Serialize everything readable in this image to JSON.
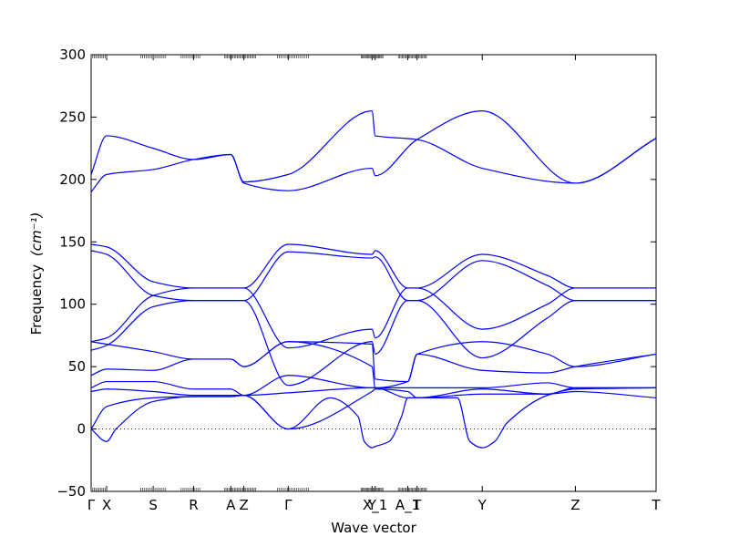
{
  "chart_data": {
    "type": "line",
    "title": "",
    "xlabel": "Wave vector",
    "ylabel": "Frequency",
    "ylabel_unit": "(cm⁻¹)",
    "ylim": [
      -50,
      300
    ],
    "yticks": [
      -50,
      0,
      50,
      100,
      150,
      200,
      250,
      300
    ],
    "grid": false,
    "legend": "none",
    "line_color": "#0000ff",
    "zero_line_style": "dotted",
    "k_points": [
      {
        "label": "Γ",
        "x": 0.0
      },
      {
        "label": "X",
        "x": 0.5
      },
      {
        "label": "S",
        "x": 2.0
      },
      {
        "label": "R",
        "x": 3.3
      },
      {
        "label": "A",
        "x": 4.5
      },
      {
        "label": "Z",
        "x": 4.92
      },
      {
        "label": "Γ",
        "x": 6.35
      },
      {
        "label": "Y",
        "x": 9.05
      },
      {
        "label": "X_1",
        "x": 9.15
      },
      {
        "label": "A_1",
        "x": 10.2
      },
      {
        "label": "T",
        "x": 10.5
      },
      {
        "label": "Y",
        "x": 12.6
      },
      {
        "label": "Z",
        "x": 15.6
      },
      {
        "label": "T",
        "x": 18.2
      }
    ],
    "xlim": [
      0,
      18.2
    ],
    "series": [
      {
        "values": [
          [
            0,
            204
          ],
          [
            0.5,
            235
          ],
          [
            2.0,
            225
          ],
          [
            3.3,
            216
          ],
          [
            4.5,
            220
          ],
          [
            4.92,
            198
          ],
          [
            6.35,
            204
          ],
          [
            9.05,
            255
          ],
          [
            9.15,
            235
          ],
          [
            10.5,
            232
          ],
          [
            12.6,
            209
          ],
          [
            15.6,
            197
          ],
          [
            18.2,
            233
          ]
        ]
      },
      {
        "values": [
          [
            0,
            190
          ],
          [
            0.5,
            204
          ],
          [
            2.0,
            208
          ],
          [
            3.3,
            216
          ],
          [
            4.5,
            220
          ],
          [
            4.92,
            197
          ],
          [
            6.35,
            191
          ],
          [
            9.05,
            209
          ],
          [
            9.15,
            203
          ],
          [
            10.5,
            232
          ],
          [
            12.6,
            255
          ],
          [
            15.6,
            197
          ],
          [
            18.2,
            233
          ]
        ]
      },
      {
        "values": [
          [
            0,
            148
          ],
          [
            0.5,
            146
          ],
          [
            2.0,
            118
          ],
          [
            3.3,
            113
          ],
          [
            4.5,
            113
          ],
          [
            4.92,
            113
          ],
          [
            6.35,
            148
          ],
          [
            9.05,
            140
          ],
          [
            9.15,
            143
          ],
          [
            10.2,
            113
          ],
          [
            10.5,
            113
          ],
          [
            12.6,
            140
          ],
          [
            14.7,
            123
          ],
          [
            15.6,
            113
          ],
          [
            18.2,
            113
          ]
        ]
      },
      {
        "values": [
          [
            0,
            143
          ],
          [
            0.5,
            140
          ],
          [
            2.0,
            107
          ],
          [
            3.3,
            103
          ],
          [
            4.5,
            103
          ],
          [
            4.92,
            103
          ],
          [
            6.35,
            142
          ],
          [
            9.05,
            137
          ],
          [
            9.15,
            138
          ],
          [
            10.2,
            103
          ],
          [
            10.5,
            103
          ],
          [
            12.6,
            135
          ],
          [
            14.7,
            115
          ],
          [
            15.6,
            103
          ],
          [
            18.2,
            103
          ]
        ]
      },
      {
        "values": [
          [
            0,
            70
          ],
          [
            0.5,
            73
          ],
          [
            2.0,
            107
          ],
          [
            3.3,
            113
          ],
          [
            4.5,
            113
          ],
          [
            4.92,
            113
          ],
          [
            6.35,
            65
          ],
          [
            9.05,
            80
          ],
          [
            9.15,
            73
          ],
          [
            10.2,
            113
          ],
          [
            10.5,
            113
          ],
          [
            12.6,
            80
          ],
          [
            14.7,
            100
          ],
          [
            15.6,
            113
          ],
          [
            18.2,
            113
          ]
        ]
      },
      {
        "values": [
          [
            0,
            63
          ],
          [
            0.5,
            67
          ],
          [
            2.0,
            98
          ],
          [
            3.3,
            103
          ],
          [
            4.5,
            103
          ],
          [
            4.92,
            103
          ],
          [
            6.35,
            35
          ],
          [
            9.05,
            70
          ],
          [
            9.15,
            60
          ],
          [
            10.2,
            103
          ],
          [
            10.5,
            103
          ],
          [
            12.6,
            57
          ],
          [
            14.7,
            89
          ],
          [
            15.6,
            103
          ],
          [
            18.2,
            103
          ]
        ]
      },
      {
        "values": [
          [
            0,
            70
          ],
          [
            0.5,
            68
          ],
          [
            2.0,
            62
          ],
          [
            3.3,
            56
          ],
          [
            4.5,
            56
          ],
          [
            4.92,
            50
          ],
          [
            6.35,
            70
          ],
          [
            9.05,
            68
          ],
          [
            9.15,
            40
          ],
          [
            10.2,
            38
          ],
          [
            10.5,
            60
          ],
          [
            12.6,
            70
          ],
          [
            14.7,
            60
          ],
          [
            15.6,
            50
          ],
          [
            18.2,
            60
          ]
        ]
      },
      {
        "values": [
          [
            0,
            43
          ],
          [
            0.5,
            48
          ],
          [
            2.0,
            47
          ],
          [
            3.3,
            56
          ],
          [
            4.5,
            56
          ],
          [
            4.92,
            50
          ],
          [
            6.35,
            70
          ],
          [
            9.05,
            50
          ],
          [
            9.15,
            33
          ],
          [
            10.2,
            38
          ],
          [
            10.5,
            60
          ],
          [
            12.6,
            47
          ],
          [
            14.7,
            45
          ],
          [
            15.6,
            50
          ],
          [
            18.2,
            60
          ]
        ]
      },
      {
        "values": [
          [
            0,
            33
          ],
          [
            0.5,
            38
          ],
          [
            2.0,
            38
          ],
          [
            3.3,
            32
          ],
          [
            4.5,
            32
          ],
          [
            4.92,
            27
          ],
          [
            6.35,
            43
          ],
          [
            9.05,
            33
          ],
          [
            9.15,
            33
          ],
          [
            10.2,
            33
          ],
          [
            10.5,
            33
          ],
          [
            12.6,
            33
          ],
          [
            14.7,
            37
          ],
          [
            15.6,
            33
          ],
          [
            18.2,
            33
          ]
        ]
      },
      {
        "values": [
          [
            0,
            30
          ],
          [
            0.5,
            32
          ],
          [
            2.0,
            30
          ],
          [
            3.3,
            27
          ],
          [
            4.5,
            27
          ],
          [
            4.92,
            27
          ],
          [
            6.35,
            29
          ],
          [
            9.05,
            33
          ],
          [
            9.15,
            33
          ],
          [
            10.2,
            25
          ],
          [
            10.5,
            25
          ],
          [
            12.6,
            28
          ],
          [
            14.7,
            28
          ],
          [
            15.6,
            30
          ],
          [
            18.2,
            25
          ]
        ]
      },
      {
        "values": [
          [
            0,
            0
          ],
          [
            0.5,
            18
          ],
          [
            2.0,
            25
          ],
          [
            3.3,
            26
          ],
          [
            4.5,
            26
          ],
          [
            4.92,
            27
          ],
          [
            6.35,
            0
          ],
          [
            9.05,
            30
          ],
          [
            9.15,
            32
          ],
          [
            10.2,
            30
          ],
          [
            10.5,
            25
          ],
          [
            12.6,
            32
          ],
          [
            14.7,
            28
          ],
          [
            15.6,
            33
          ],
          [
            18.2,
            33
          ]
        ]
      },
      {
        "values": [
          [
            0,
            0
          ],
          [
            0.5,
            -10
          ],
          [
            0.8,
            0
          ],
          [
            2.0,
            22
          ],
          [
            3.3,
            26
          ],
          [
            4.5,
            26
          ],
          [
            4.92,
            27
          ],
          [
            6.35,
            0
          ],
          [
            7.7,
            25
          ],
          [
            8.6,
            10
          ],
          [
            8.8,
            -10
          ],
          [
            9.05,
            -15
          ],
          [
            9.15,
            -14
          ],
          [
            9.6,
            -10
          ],
          [
            10.0,
            10
          ],
          [
            10.2,
            25
          ],
          [
            10.5,
            25
          ],
          [
            11.8,
            25
          ],
          [
            12.2,
            -10
          ],
          [
            12.6,
            -15
          ],
          [
            13.0,
            -10
          ],
          [
            13.4,
            5
          ],
          [
            14.7,
            27
          ],
          [
            15.6,
            32
          ],
          [
            18.2,
            33
          ]
        ]
      }
    ]
  }
}
